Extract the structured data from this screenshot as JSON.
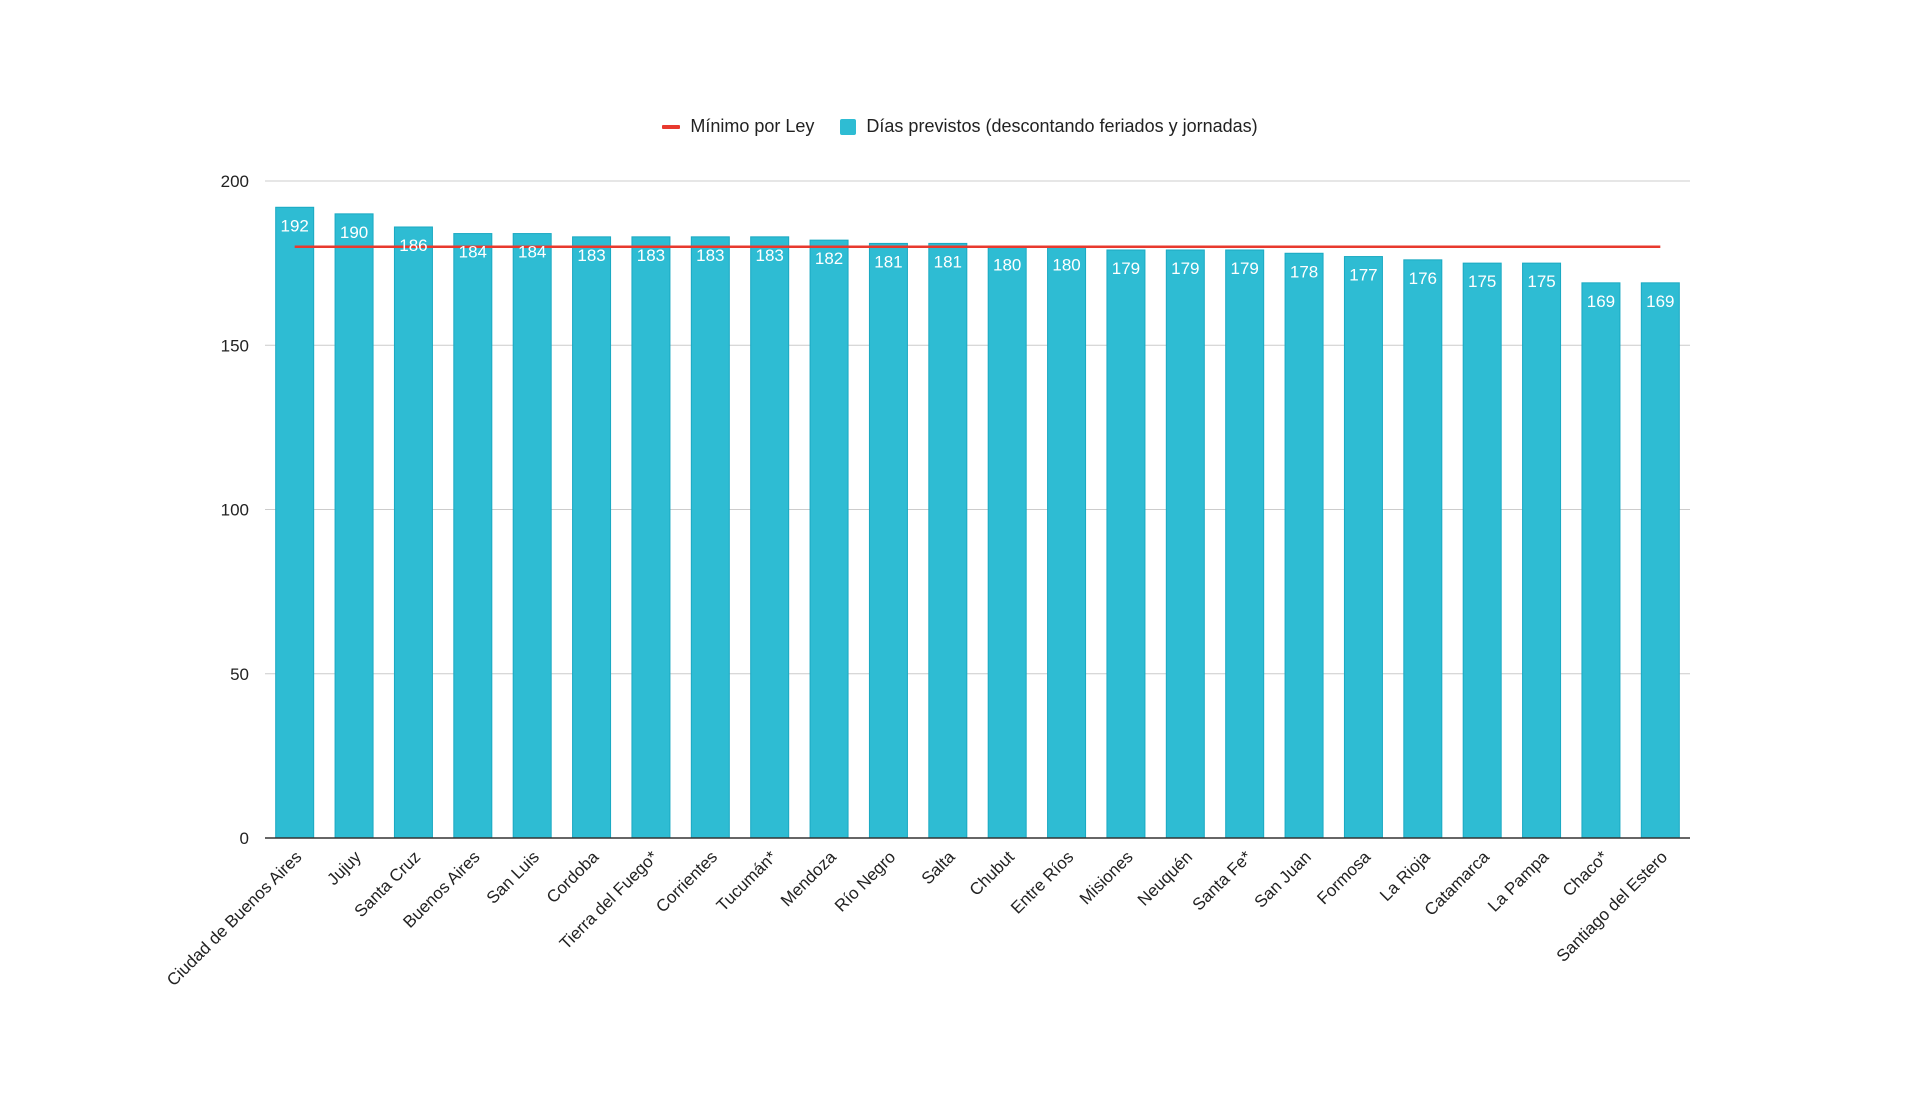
{
  "chart_data": {
    "type": "bar",
    "categories": [
      "Ciudad de Buenos Aires",
      "Jujuy",
      "Santa Cruz",
      "Buenos Aires",
      "San Luis",
      "Cordoba",
      "Tierra del Fuego*",
      "Corrientes",
      "Tucumán*",
      "Mendoza",
      "Río Negro",
      "Salta",
      "Chubut",
      "Entre Ríos",
      "Misiones",
      "Neuquén",
      "Santa Fe*",
      "San Juan",
      "Formosa",
      "La Rioja",
      "Catamarca",
      "La Pampa",
      "Chaco*",
      "Santiago del Estero"
    ],
    "series": [
      {
        "name": "Días previstos (descontando feriados y jornadas)",
        "values": [
          192,
          190,
          186,
          184,
          184,
          183,
          183,
          183,
          183,
          182,
          181,
          181,
          180,
          180,
          179,
          179,
          179,
          178,
          177,
          176,
          175,
          175,
          169,
          169
        ]
      }
    ],
    "reference_line": {
      "name": "Mínimo por Ley",
      "value": 180
    },
    "ylim": [
      0,
      200
    ],
    "yticks": [
      0,
      50,
      100,
      150,
      200
    ],
    "grid": true,
    "legend_position": "top",
    "colors": {
      "bar": "#2ebcd3",
      "bar_stroke": "#1aa9c2",
      "reference": "#e8392e",
      "grid": "#cccccc",
      "axis": "#333333",
      "text": "#222222",
      "label": "#ffffff"
    }
  }
}
